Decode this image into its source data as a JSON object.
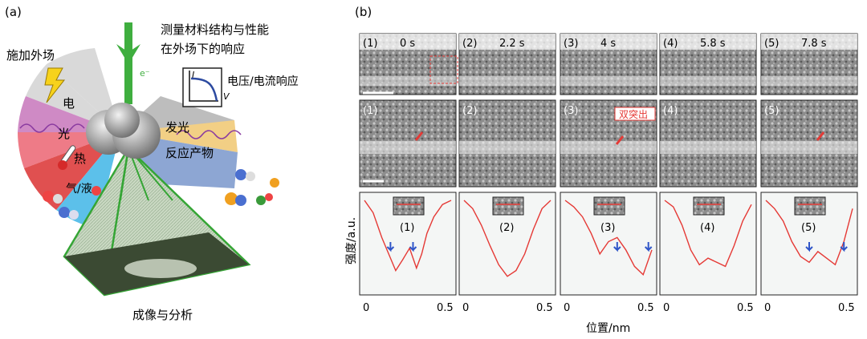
{
  "panel_a": {
    "label": "(a)",
    "top_text_line1": "测量材料结构与性能",
    "top_text_line2": "在外场下的响应",
    "external_field": "施加外场",
    "electron": "e⁻",
    "iv_response": "电压/电流响应",
    "iv_y": "I",
    "iv_x": "V",
    "sectors_left": [
      "电",
      "光",
      "热",
      "气/液"
    ],
    "sectors_right": [
      "发光",
      "反应产物"
    ],
    "imaging": "成像与分析"
  },
  "panel_b": {
    "label": "(b)",
    "frames": [
      {
        "index": "(1)",
        "time": "0 s"
      },
      {
        "index": "(2)",
        "time": "2.2 s"
      },
      {
        "index": "(3)",
        "time": "4 s"
      },
      {
        "index": "(4)",
        "time": "5.8 s"
      },
      {
        "index": "(5)",
        "time": "7.8 s"
      }
    ],
    "annotation": "双突出",
    "ylabel": "强度/a.u.",
    "xlabel": "位置/nm",
    "xticks": [
      "0",
      "0.5"
    ],
    "colors": {
      "profile": "#e53935",
      "arrow": "#2f55c8",
      "marker": "#e53935"
    }
  },
  "chart_data": {
    "type": "line",
    "xlabel": "位置/nm",
    "ylabel": "强度/a.u.",
    "xlim": [
      0,
      0.5
    ],
    "series": [
      {
        "x": [
          0,
          0.05,
          0.1,
          0.15,
          0.18,
          0.22,
          0.26,
          0.3,
          0.33,
          0.36,
          0.4,
          0.45,
          0.5
        ],
        "y": [
          1.0,
          0.85,
          0.55,
          0.3,
          0.15,
          0.28,
          0.42,
          0.18,
          0.35,
          0.6,
          0.8,
          0.95,
          1.0
        ]
      },
      {
        "x": [
          0,
          0.05,
          0.1,
          0.15,
          0.2,
          0.25,
          0.3,
          0.35,
          0.4,
          0.45,
          0.5
        ],
        "y": [
          1.0,
          0.9,
          0.7,
          0.45,
          0.22,
          0.08,
          0.15,
          0.35,
          0.65,
          0.9,
          1.0
        ]
      },
      {
        "x": [
          0,
          0.05,
          0.1,
          0.15,
          0.2,
          0.25,
          0.3,
          0.35,
          0.4,
          0.45,
          0.5
        ],
        "y": [
          1.0,
          0.92,
          0.8,
          0.6,
          0.35,
          0.5,
          0.55,
          0.4,
          0.2,
          0.1,
          0.4
        ]
      },
      {
        "x": [
          0,
          0.05,
          0.1,
          0.15,
          0.2,
          0.25,
          0.3,
          0.35,
          0.4,
          0.45,
          0.5
        ],
        "y": [
          1.0,
          0.92,
          0.7,
          0.4,
          0.22,
          0.3,
          0.25,
          0.2,
          0.45,
          0.75,
          0.95
        ]
      },
      {
        "x": [
          0,
          0.05,
          0.1,
          0.15,
          0.2,
          0.25,
          0.3,
          0.35,
          0.4,
          0.45,
          0.5
        ],
        "y": [
          1.0,
          0.9,
          0.75,
          0.5,
          0.32,
          0.25,
          0.38,
          0.3,
          0.22,
          0.5,
          0.9
        ]
      }
    ]
  }
}
